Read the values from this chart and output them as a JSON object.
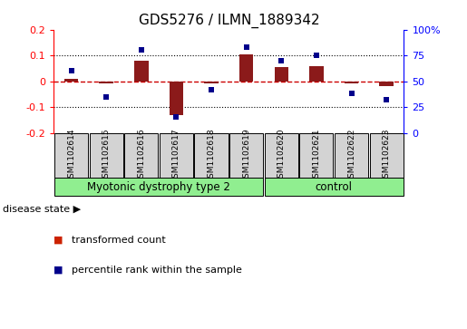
{
  "title": "GDS5276 / ILMN_1889342",
  "samples": [
    "GSM1102614",
    "GSM1102615",
    "GSM1102616",
    "GSM1102617",
    "GSM1102618",
    "GSM1102619",
    "GSM1102620",
    "GSM1102621",
    "GSM1102622",
    "GSM1102623"
  ],
  "transformed_count": [
    0.01,
    -0.01,
    0.08,
    -0.13,
    -0.01,
    0.105,
    0.055,
    0.06,
    -0.01,
    -0.02
  ],
  "percentile_rank": [
    60,
    35,
    80,
    15,
    42,
    83,
    70,
    75,
    38,
    32
  ],
  "bar_color": "#8B1A1A",
  "dot_color": "#00008B",
  "ylim_left": [
    -0.2,
    0.2
  ],
  "ylim_right": [
    0,
    100
  ],
  "yticks_left": [
    -0.2,
    -0.1,
    0.0,
    0.1,
    0.2
  ],
  "yticks_right": [
    0,
    25,
    50,
    75,
    100
  ],
  "ytick_labels_left": [
    "-0.2",
    "-0.1",
    "0",
    "0.1",
    "0.2"
  ],
  "ytick_labels_right": [
    "0",
    "25",
    "50",
    "75",
    "100%"
  ],
  "groups": [
    {
      "label": "Myotonic dystrophy type 2",
      "start": 0,
      "end": 5,
      "color": "#90EE90"
    },
    {
      "label": "control",
      "start": 6,
      "end": 9,
      "color": "#90EE90"
    }
  ],
  "disease_state_label": "disease state",
  "legend_items": [
    {
      "label": "transformed count",
      "color": "#CC2200"
    },
    {
      "label": "percentile rank within the sample",
      "color": "#00008B"
    }
  ],
  "background_color": "#FFFFFF",
  "grid_color": "#000000",
  "zero_line_color": "#CC0000",
  "sample_box_color": "#D3D3D3"
}
